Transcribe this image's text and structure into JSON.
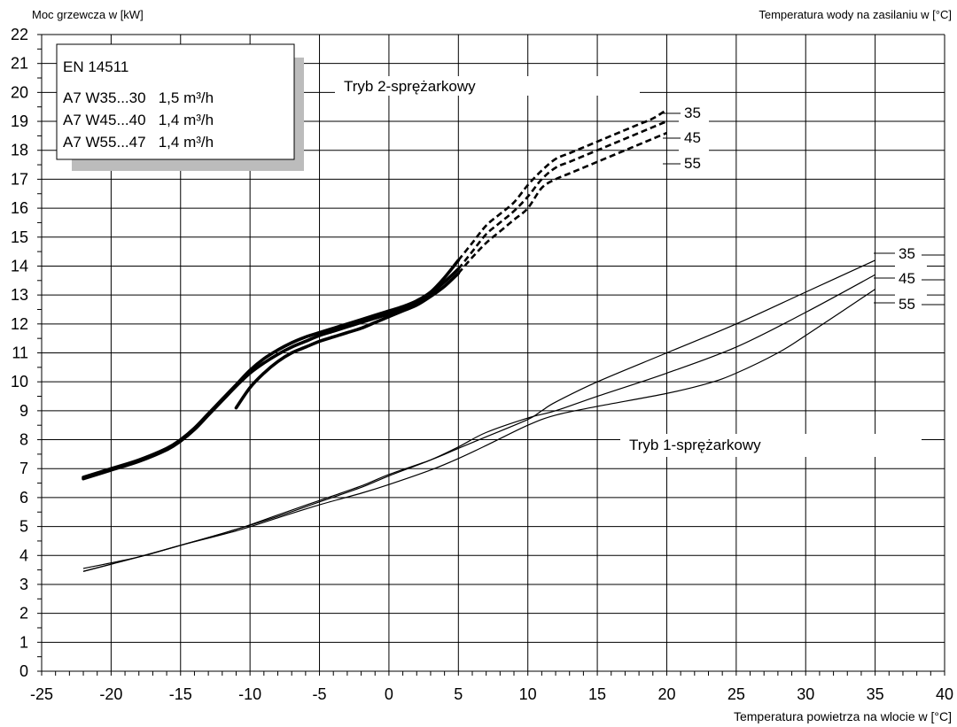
{
  "chart_data": {
    "type": "line",
    "ylabel": "Moc grzewcza w [kW]",
    "ylabel2": "Temperatura wody na zasilaniu w [°C]",
    "xlabel": "Temperatura powietrza na wlocie w [°C]",
    "xlim": [
      -25,
      40
    ],
    "ylim": [
      0,
      22
    ],
    "x_ticks": [
      -25,
      -20,
      -15,
      -10,
      -5,
      0,
      5,
      10,
      15,
      20,
      25,
      30,
      35,
      40
    ],
    "y_ticks": [
      0,
      1,
      2,
      3,
      4,
      5,
      6,
      7,
      8,
      9,
      10,
      11,
      12,
      13,
      14,
      15,
      16,
      17,
      18,
      19,
      20,
      21,
      22
    ],
    "x_tick_labels": [
      "-25",
      "-20",
      "-15",
      "-10",
      "-5",
      "0",
      "5",
      "10",
      "15",
      "20",
      "25",
      "30",
      "35",
      "40"
    ],
    "y_tick_labels": [
      "0",
      "1",
      "2",
      "3",
      "4",
      "5",
      "6",
      "7",
      "8",
      "9",
      "10",
      "11",
      "12",
      "13",
      "14",
      "15",
      "16",
      "17",
      "18",
      "19",
      "20",
      "21",
      "22"
    ],
    "grid": true,
    "legend_box": {
      "title": "EN 14511",
      "rows": [
        "A7 W35...30   1,5 m³/h",
        "A7 W45...40   1,4 m³/h",
        "A7 W55...47   1,4 m³/h"
      ]
    },
    "annotations": {
      "mode2": "Tryb 2-sprężarkowy",
      "mode1": "Tryb 1-sprężarkowy"
    },
    "series": [
      {
        "name": "35",
        "group": "Tryb 2-sprężarkowy",
        "style": "thick",
        "x": [
          -22,
          -20,
          -18,
          -16,
          -15,
          -14,
          -13,
          -12,
          -11,
          -10,
          -9,
          -8,
          -7,
          -6,
          -5,
          -4,
          -3,
          -2,
          -1,
          0,
          1,
          2,
          3,
          4,
          5
        ],
        "y": [
          6.7,
          7.0,
          7.3,
          7.7,
          8.0,
          8.4,
          8.9,
          9.4,
          9.9,
          10.4,
          10.8,
          11.1,
          11.35,
          11.55,
          11.7,
          11.85,
          12.0,
          12.15,
          12.3,
          12.45,
          12.6,
          12.8,
          13.1,
          13.6,
          14.2
        ]
      },
      {
        "name": "45",
        "group": "Tryb 2-sprężarkowy",
        "style": "thick",
        "x": [
          -22,
          -20,
          -18,
          -16,
          -15,
          -14,
          -13,
          -12,
          -11,
          -10,
          -9,
          -8,
          -7,
          -6,
          -5,
          -4,
          -3,
          -2,
          -1,
          0,
          1,
          2,
          3,
          4,
          5
        ],
        "y": [
          6.65,
          6.95,
          7.25,
          7.65,
          7.95,
          8.35,
          8.85,
          9.35,
          9.85,
          10.3,
          10.65,
          10.95,
          11.2,
          11.4,
          11.6,
          11.75,
          11.9,
          12.05,
          12.2,
          12.35,
          12.55,
          12.75,
          13.05,
          13.45,
          13.9
        ]
      },
      {
        "name": "55",
        "group": "Tryb 2-sprężarkowy",
        "style": "thick",
        "x": [
          -11,
          -10,
          -9,
          -8,
          -7,
          -6,
          -5,
          -4,
          -3,
          -2,
          -1,
          0,
          1,
          2,
          3,
          4,
          5
        ],
        "y": [
          9.1,
          9.8,
          10.3,
          10.7,
          11.0,
          11.2,
          11.4,
          11.55,
          11.7,
          11.85,
          12.05,
          12.25,
          12.45,
          12.65,
          12.95,
          13.3,
          13.75
        ]
      },
      {
        "name": "35",
        "group": "Tryb 2-sprężarkowy",
        "style": "dashed",
        "x": [
          5,
          6,
          7,
          8,
          9,
          10,
          11,
          12,
          13,
          14,
          15,
          16,
          17,
          18,
          19,
          20
        ],
        "y": [
          14.2,
          14.8,
          15.4,
          15.8,
          16.2,
          16.8,
          17.3,
          17.7,
          17.9,
          18.1,
          18.3,
          18.5,
          18.7,
          18.9,
          19.1,
          19.4
        ]
      },
      {
        "name": "45",
        "group": "Tryb 2-sprężarkowy",
        "style": "dashed",
        "x": [
          5,
          6,
          7,
          8,
          9,
          10,
          11,
          12,
          13,
          14,
          15,
          16,
          17,
          18,
          19,
          20
        ],
        "y": [
          13.9,
          14.5,
          15.1,
          15.5,
          15.9,
          16.4,
          17.0,
          17.4,
          17.6,
          17.8,
          18.0,
          18.2,
          18.4,
          18.6,
          18.8,
          19.0
        ]
      },
      {
        "name": "55",
        "group": "Tryb 2-sprężarkowy",
        "style": "dashed",
        "x": [
          5,
          6,
          7,
          8,
          9,
          10,
          11,
          12,
          13,
          14,
          15,
          16,
          17,
          18,
          19,
          20
        ],
        "y": [
          13.75,
          14.3,
          14.8,
          15.2,
          15.6,
          16.0,
          16.7,
          17.0,
          17.2,
          17.4,
          17.6,
          17.8,
          18.0,
          18.2,
          18.4,
          18.6
        ]
      },
      {
        "name": "35",
        "group": "Tryb 1-sprężarkowy",
        "style": "thin",
        "x": [
          -22,
          -18,
          -15,
          -11,
          -8,
          -5,
          -2,
          0,
          3,
          5,
          7,
          10,
          11,
          12,
          15,
          20,
          25,
          30,
          35
        ],
        "y": [
          3.45,
          3.95,
          4.35,
          4.9,
          5.4,
          5.9,
          6.4,
          6.8,
          7.3,
          7.7,
          8.1,
          8.7,
          9.0,
          9.3,
          10.0,
          11.0,
          12.0,
          13.1,
          14.2
        ]
      },
      {
        "name": "45",
        "group": "Tryb 1-sprężarkowy",
        "style": "thin",
        "x": [
          -22,
          -18,
          -15,
          -11,
          -8,
          -5,
          -2,
          0,
          3,
          5,
          7,
          10,
          12,
          15,
          20,
          25,
          30,
          35
        ],
        "y": [
          3.45,
          3.95,
          4.35,
          4.9,
          5.35,
          5.85,
          6.35,
          6.75,
          7.3,
          7.75,
          8.25,
          8.75,
          9.0,
          9.5,
          10.3,
          11.2,
          12.4,
          13.7
        ]
      },
      {
        "name": "55",
        "group": "Tryb 1-sprężarkowy",
        "style": "thin",
        "x": [
          -22,
          -18,
          -15,
          -11,
          -8,
          -5,
          -2,
          0,
          3,
          5,
          7,
          10,
          12,
          15,
          20,
          23,
          25,
          28,
          30,
          35
        ],
        "y": [
          3.55,
          3.95,
          4.35,
          4.85,
          5.3,
          5.75,
          6.15,
          6.45,
          6.95,
          7.35,
          7.8,
          8.5,
          8.85,
          9.15,
          9.6,
          9.95,
          10.3,
          11.0,
          11.6,
          13.2
        ]
      }
    ],
    "series_labels_mode2": [
      "35",
      "45",
      "55"
    ],
    "series_labels_mode1": [
      "35",
      "45",
      "55"
    ]
  }
}
